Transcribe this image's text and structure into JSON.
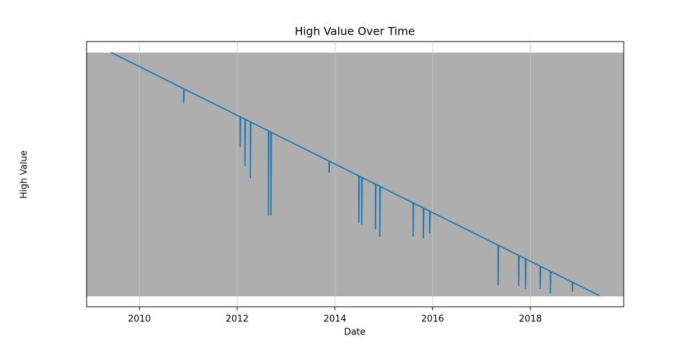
{
  "chart_data": {
    "type": "line",
    "title": "High Value Over Time",
    "x_label": "Date",
    "y_label": "High Value",
    "x": [
      2009.42,
      2010.906,
      2010.906,
      2010.916,
      2012.06,
      2012.06,
      2012.07,
      2012.16,
      2012.16,
      2012.17,
      2012.27,
      2012.27,
      2012.28,
      2012.64,
      2012.64,
      2012.65,
      2012.69,
      2012.69,
      2012.7,
      2013.88,
      2013.88,
      2013.89,
      2014.49,
      2014.49,
      2014.5,
      2014.55,
      2014.55,
      2014.56,
      2014.83,
      2014.83,
      2014.84,
      2014.92,
      2014.92,
      2014.93,
      2015.6,
      2015.6,
      2015.61,
      2015.81,
      2015.81,
      2015.82,
      2015.94,
      2015.94,
      2015.95,
      2017.34,
      2017.34,
      2017.35,
      2017.76,
      2017.76,
      2017.77,
      2017.9,
      2017.9,
      2017.91,
      2018.2,
      2018.2,
      2018.21,
      2018.41,
      2018.41,
      2018.42,
      2018.86,
      2018.86,
      2018.87,
      2019.42
    ],
    "series": [
      {
        "name": "High",
        "color": "#1f77b4",
        "values": [
          100,
          85.1,
          79.0,
          85.0,
          73.6,
          61.1,
          73.5,
          72.6,
          53.4,
          72.5,
          71.5,
          48.3,
          71.4,
          67.8,
          33.0,
          67.7,
          67.3,
          33.0,
          67.2,
          55.4,
          50.6,
          55.3,
          49.3,
          30.1,
          49.2,
          48.7,
          29.3,
          48.6,
          45.9,
          27.3,
          45.8,
          45.0,
          24.4,
          44.9,
          38.2,
          24.4,
          38.1,
          36.1,
          23.6,
          36.0,
          34.8,
          25.6,
          34.7,
          20.8,
          4.3,
          20.7,
          16.6,
          4.0,
          16.5,
          15.2,
          2.8,
          15.1,
          12.2,
          2.8,
          12.1,
          10.1,
          0.9,
          10.0,
          5.6,
          1.7,
          5.5,
          0
        ]
      }
    ],
    "xlim": [
      2008.92,
      2019.91
    ],
    "xticks": [
      2010,
      2012,
      2014,
      2016,
      2018
    ],
    "ylim": [
      -4.5,
      104.5
    ]
  }
}
